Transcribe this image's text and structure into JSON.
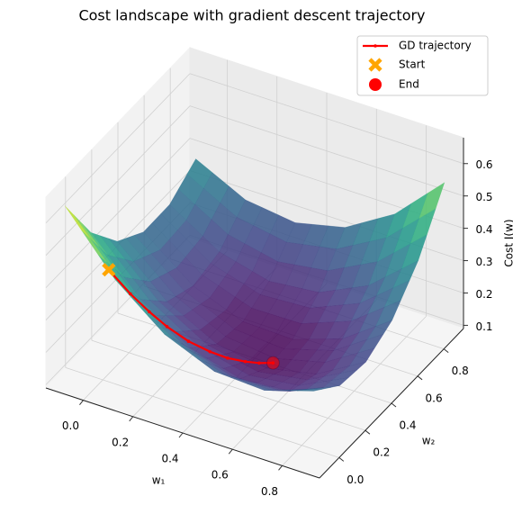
{
  "chart_data": {
    "type": "surface3d",
    "title": "Cost landscape with gradient descent trajectory",
    "xlabel": "w₁",
    "ylabel": "w₂",
    "zlabel": "Cost J(w)",
    "xlim": [
      -0.15,
      0.95
    ],
    "ylim": [
      -0.15,
      0.95
    ],
    "zlim": [
      0.09,
      0.68
    ],
    "xticks": [
      {
        "value": 0,
        "label": "0.0"
      },
      0.2,
      0.4,
      0.6,
      0.8
    ],
    "yticks": [
      {
        "value": 0,
        "label": "0.0"
      },
      0.2,
      0.4,
      0.6,
      0.8
    ],
    "zticks": [
      0.1,
      0.2,
      0.3,
      0.4,
      0.5,
      0.6
    ],
    "grid": true,
    "colormap": "viridis",
    "legend": "upper right",
    "surface": {
      "x": [
        -0.1,
        0.1,
        0.3,
        0.5,
        0.7,
        0.9
      ],
      "y": [
        -0.1,
        0.1,
        0.3,
        0.5,
        0.7,
        0.9
      ],
      "z": [
        [
          0.645,
          0.478,
          0.367,
          0.312,
          0.313,
          0.37
        ],
        [
          0.469,
          0.322,
          0.231,
          0.196,
          0.217,
          0.294
        ],
        [
          0.349,
          0.222,
          0.151,
          0.136,
          0.177,
          0.274
        ],
        [
          0.285,
          0.178,
          0.127,
          0.132,
          0.193,
          0.31
        ],
        [
          0.277,
          0.19,
          0.159,
          0.184,
          0.265,
          0.402
        ],
        [
          0.325,
          0.258,
          0.247,
          0.292,
          0.393,
          0.55
        ]
      ]
    },
    "series": [
      {
        "name": "GD trajectory",
        "color": "#ff0000",
        "x": [
          0.05,
          0.1,
          0.15,
          0.2,
          0.26,
          0.32,
          0.37,
          0.42,
          0.46,
          0.5
        ],
        "y": [
          -0.05,
          0.02,
          0.07,
          0.11,
          0.16,
          0.21,
          0.25,
          0.29,
          0.32,
          0.35
        ],
        "z": [
          0.464,
          0.373,
          0.309,
          0.259,
          0.208,
          0.17,
          0.146,
          0.131,
          0.124,
          0.122
        ]
      }
    ],
    "markers": [
      {
        "name": "Start",
        "color": "#ffa500",
        "marker": "X"
      },
      {
        "name": "End",
        "color": "#ff0000",
        "marker": "o"
      }
    ]
  }
}
